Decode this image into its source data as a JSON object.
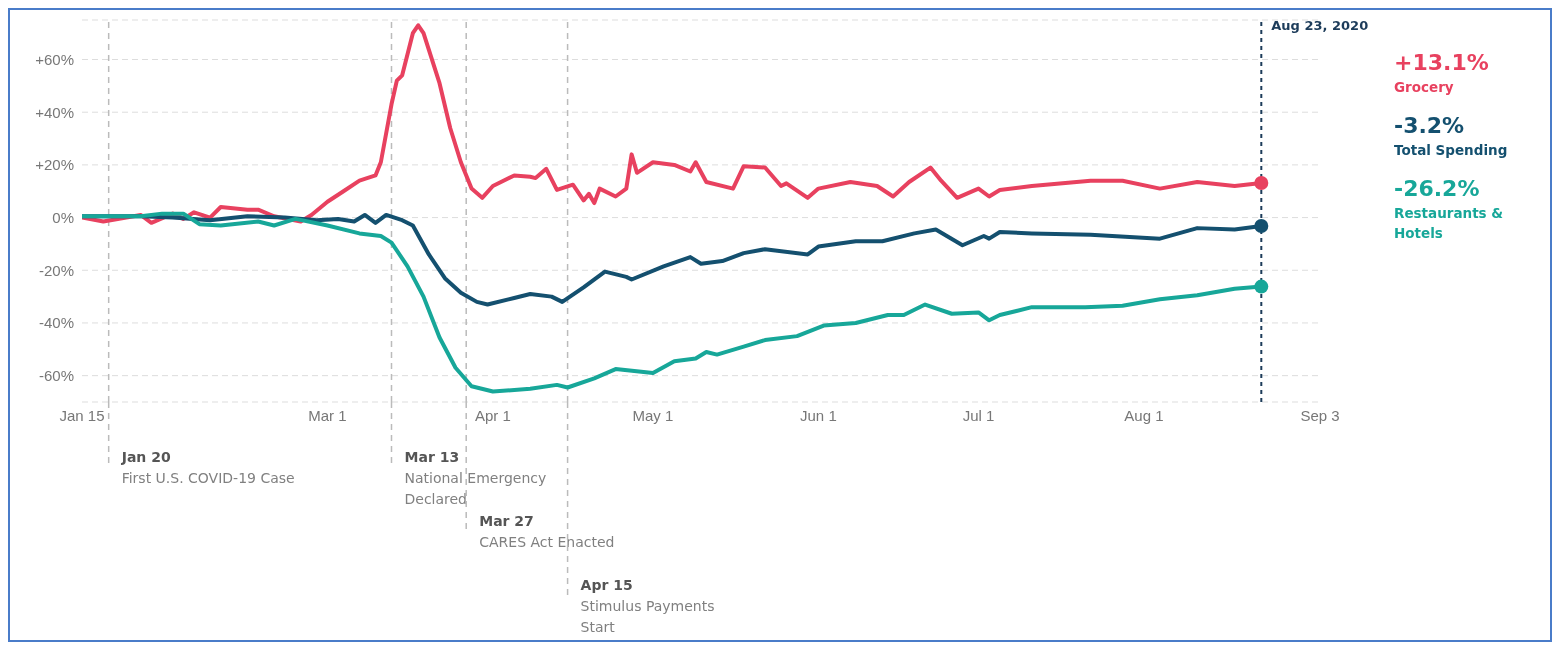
{
  "chart_data": {
    "type": "line",
    "xlim": [
      "2020-01-15",
      "2020-09-03"
    ],
    "xticks": [
      {
        "value": "2020-01-15",
        "label": "Jan 15"
      },
      {
        "value": "2020-03-01",
        "label": "Mar 1"
      },
      {
        "value": "2020-04-01",
        "label": "Apr 1"
      },
      {
        "value": "2020-05-01",
        "label": "May 1"
      },
      {
        "value": "2020-06-01",
        "label": "Jun 1"
      },
      {
        "value": "2020-07-01",
        "label": "Jul 1"
      },
      {
        "value": "2020-08-01",
        "label": "Aug 1"
      },
      {
        "value": "2020-09-03",
        "label": "Sep 3"
      }
    ],
    "ylim": [
      -70,
      75
    ],
    "yticks": [
      {
        "value": -60,
        "label": "-60%"
      },
      {
        "value": -40,
        "label": "-40%"
      },
      {
        "value": -20,
        "label": "-20%"
      },
      {
        "value": 0,
        "label": "0%"
      },
      {
        "value": 20,
        "label": "+20%"
      },
      {
        "value": 40,
        "label": "+40%"
      },
      {
        "value": 60,
        "label": "+60%"
      }
    ],
    "grid": "y",
    "legend": "right",
    "marker": "none",
    "line_style": "solid",
    "series": [
      {
        "name": "Grocery",
        "color": "#e8415f",
        "x": [
          "2020-01-15",
          "2020-01-19",
          "2020-01-26",
          "2020-01-28",
          "2020-02-01",
          "2020-02-03",
          "2020-02-05",
          "2020-02-08",
          "2020-02-10",
          "2020-02-15",
          "2020-02-17",
          "2020-02-20",
          "2020-02-25",
          "2020-02-27",
          "2020-03-01",
          "2020-03-04",
          "2020-03-07",
          "2020-03-10",
          "2020-03-11",
          "2020-03-13",
          "2020-03-14",
          "2020-03-15",
          "2020-03-17",
          "2020-03-18",
          "2020-03-19",
          "2020-03-22",
          "2020-03-24",
          "2020-03-26",
          "2020-03-28",
          "2020-03-30",
          "2020-04-01",
          "2020-04-05",
          "2020-04-08",
          "2020-04-09",
          "2020-04-11",
          "2020-04-13",
          "2020-04-16",
          "2020-04-18",
          "2020-04-19",
          "2020-04-20",
          "2020-04-21",
          "2020-04-24",
          "2020-04-26",
          "2020-04-27",
          "2020-04-28",
          "2020-05-01",
          "2020-05-05",
          "2020-05-08",
          "2020-05-09",
          "2020-05-11",
          "2020-05-16",
          "2020-05-18",
          "2020-05-22",
          "2020-05-25",
          "2020-05-26",
          "2020-05-30",
          "2020-06-01",
          "2020-06-07",
          "2020-06-12",
          "2020-06-15",
          "2020-06-18",
          "2020-06-22",
          "2020-06-24",
          "2020-06-27",
          "2020-07-01",
          "2020-07-03",
          "2020-07-05",
          "2020-07-11",
          "2020-07-22",
          "2020-07-28",
          "2020-08-04",
          "2020-08-11",
          "2020-08-18",
          "2020-08-23"
        ],
        "values": [
          0,
          -1.5,
          1,
          -2,
          1.5,
          -0.5,
          2,
          0,
          4,
          3,
          3,
          0.5,
          -1.5,
          1,
          6,
          10,
          14,
          16,
          21,
          43,
          52,
          54,
          70,
          73,
          70,
          51,
          34,
          21,
          11,
          7.5,
          12,
          16,
          15.5,
          15,
          18.5,
          10.5,
          12.5,
          6.5,
          9,
          5.5,
          11,
          8,
          11,
          24,
          17,
          21,
          20,
          17.5,
          21,
          13.5,
          11,
          19.5,
          19,
          12,
          13,
          7.5,
          11,
          13.5,
          12,
          8,
          13.5,
          19,
          14,
          7.5,
          11,
          8,
          10.5,
          12,
          14,
          14,
          11,
          13.5,
          12,
          13.1
        ]
      },
      {
        "name": "Total Spending",
        "color": "#14506f",
        "x": [
          "2020-01-15",
          "2020-01-26",
          "2020-02-01",
          "2020-02-08",
          "2020-02-15",
          "2020-02-22",
          "2020-02-28",
          "2020-03-03",
          "2020-03-06",
          "2020-03-08",
          "2020-03-10",
          "2020-03-12",
          "2020-03-15",
          "2020-03-17",
          "2020-03-20",
          "2020-03-23",
          "2020-03-26",
          "2020-03-29",
          "2020-03-31",
          "2020-04-05",
          "2020-04-08",
          "2020-04-12",
          "2020-04-14",
          "2020-04-18",
          "2020-04-22",
          "2020-04-26",
          "2020-04-27",
          "2020-05-03",
          "2020-05-08",
          "2020-05-10",
          "2020-05-14",
          "2020-05-18",
          "2020-05-22",
          "2020-05-30",
          "2020-06-01",
          "2020-06-08",
          "2020-06-13",
          "2020-06-19",
          "2020-06-23",
          "2020-06-28",
          "2020-07-02",
          "2020-07-03",
          "2020-07-05",
          "2020-07-11",
          "2020-07-22",
          "2020-08-04",
          "2020-08-11",
          "2020-08-18",
          "2020-08-23"
        ],
        "values": [
          0.5,
          0.5,
          0,
          -1,
          0.5,
          0,
          -1,
          -0.5,
          -1.5,
          1,
          -2,
          1,
          -1,
          -3,
          -14,
          -23,
          -28.5,
          -32,
          -33,
          -30.5,
          -29,
          -30,
          -32,
          -26.5,
          -20.5,
          -22.5,
          -23.5,
          -18.5,
          -15,
          -17.5,
          -16.5,
          -13.5,
          -12,
          -14,
          -11,
          -9,
          -9,
          -6,
          -4.5,
          -10.5,
          -7,
          -8,
          -5.5,
          -6,
          -6.5,
          -8,
          -4,
          -4.5,
          -3.2
        ]
      },
      {
        "name": "Restaurants & Hotels",
        "color": "#17a799",
        "x": [
          "2020-01-15",
          "2020-01-26",
          "2020-01-30",
          "2020-02-03",
          "2020-02-06",
          "2020-02-10",
          "2020-02-17",
          "2020-02-20",
          "2020-02-24",
          "2020-03-01",
          "2020-03-07",
          "2020-03-11",
          "2020-03-13",
          "2020-03-16",
          "2020-03-19",
          "2020-03-22",
          "2020-03-25",
          "2020-03-28",
          "2020-04-01",
          "2020-04-08",
          "2020-04-13",
          "2020-04-15",
          "2020-04-20",
          "2020-04-24",
          "2020-05-01",
          "2020-05-05",
          "2020-05-09",
          "2020-05-11",
          "2020-05-13",
          "2020-05-18",
          "2020-05-22",
          "2020-05-28",
          "2020-06-02",
          "2020-06-08",
          "2020-06-14",
          "2020-06-17",
          "2020-06-21",
          "2020-06-26",
          "2020-07-01",
          "2020-07-03",
          "2020-07-05",
          "2020-07-11",
          "2020-07-21",
          "2020-07-28",
          "2020-08-04",
          "2020-08-11",
          "2020-08-18",
          "2020-08-23"
        ],
        "values": [
          0.5,
          0.5,
          1.5,
          1.5,
          -2.5,
          -3,
          -1.5,
          -3,
          -0.5,
          -3,
          -6,
          -7,
          -9.5,
          -18.5,
          -30,
          -45.5,
          -57,
          -64,
          -66,
          -65,
          -63.5,
          -64.5,
          -61,
          -57.5,
          -59,
          -54.5,
          -53.5,
          -51,
          -52,
          -49,
          -46.5,
          -45,
          -41,
          -40,
          -37,
          -37,
          -33,
          -36.5,
          -36,
          -39,
          -37,
          -34,
          -34,
          -33.5,
          -31,
          -29.5,
          -27,
          -26.2
        ]
      }
    ],
    "ref_lines": [
      {
        "axis": "x",
        "value": "2020-01-20",
        "label": "Jan 20\nFirst U.S. COVID-19 Case"
      },
      {
        "axis": "x",
        "value": "2020-03-13",
        "label": "Mar 13\nNational Emergency\nDeclared"
      },
      {
        "axis": "x",
        "value": "2020-03-27",
        "label": "Mar 27\nCARES Act Enacted"
      },
      {
        "axis": "x",
        "value": "2020-04-15",
        "label": "Apr 15\nStimulus Payments\nStart"
      },
      {
        "axis": "x",
        "value": "2020-08-23",
        "label": "Aug 23, 2020",
        "color": "#1d3c5a",
        "line_style": "dashed"
      }
    ],
    "annotations": [
      "+13.1%",
      "-3.2%",
      "-26.2%"
    ]
  }
}
